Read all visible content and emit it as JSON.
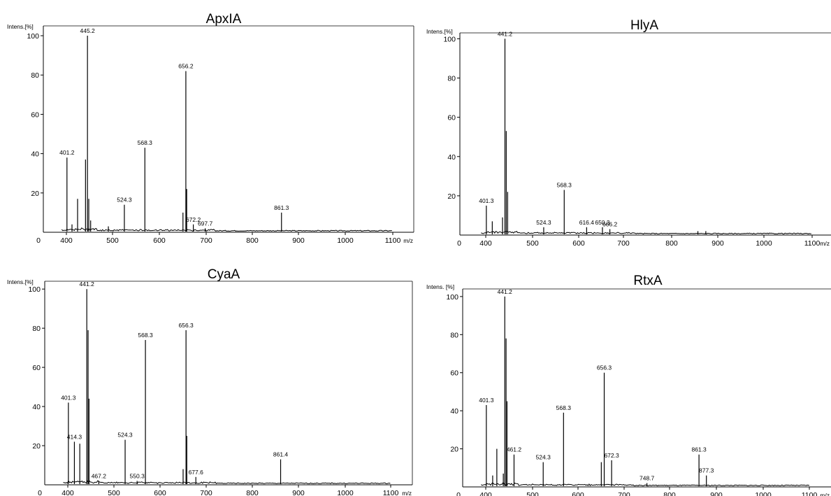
{
  "chart_data": [
    {
      "type": "line",
      "title": "ApxIA",
      "ylabel": "Intens.[%]",
      "xlabel": "m/z",
      "xlim": [
        0,
        1150
      ],
      "ylim": [
        0,
        105
      ],
      "xticks": [
        "0",
        "400",
        "500",
        "600",
        "700",
        "800",
        "900",
        "1000",
        "1100"
      ],
      "yticks": [
        "100",
        "80",
        "60",
        "40",
        "20"
      ],
      "peaks": [
        {
          "x": 401.2,
          "y": 38,
          "label": "401.2"
        },
        {
          "x": 412,
          "y": 4
        },
        {
          "x": 424,
          "y": 17
        },
        {
          "x": 441,
          "y": 37
        },
        {
          "x": 445.2,
          "y": 100,
          "label": "445.2"
        },
        {
          "x": 448,
          "y": 17
        },
        {
          "x": 452,
          "y": 6
        },
        {
          "x": 490,
          "y": 3
        },
        {
          "x": 524.3,
          "y": 14,
          "label": "524.3"
        },
        {
          "x": 568.3,
          "y": 43,
          "label": "568.3"
        },
        {
          "x": 650,
          "y": 10
        },
        {
          "x": 656.2,
          "y": 82,
          "label": "656.2"
        },
        {
          "x": 658,
          "y": 22
        },
        {
          "x": 672.2,
          "y": 4,
          "label": "672.2"
        },
        {
          "x": 697.7,
          "y": 2,
          "label": "697.7"
        },
        {
          "x": 861.3,
          "y": 10,
          "label": "861.3"
        }
      ]
    },
    {
      "type": "line",
      "title": "HlyA",
      "ylabel": "Intens.[%]",
      "xlabel": "m/z",
      "xlim": [
        0,
        1150
      ],
      "ylim": [
        0,
        103
      ],
      "xticks": [
        "0",
        "400",
        "500",
        "600",
        "700",
        "800",
        "900",
        "1000",
        "1100"
      ],
      "yticks": [
        "100",
        "80",
        "60",
        "40",
        "20"
      ],
      "peaks": [
        {
          "x": 401.3,
          "y": 15,
          "label": "401.3"
        },
        {
          "x": 414,
          "y": 7
        },
        {
          "x": 436,
          "y": 9
        },
        {
          "x": 441.2,
          "y": 100,
          "label": "441.2"
        },
        {
          "x": 444,
          "y": 53
        },
        {
          "x": 447,
          "y": 22
        },
        {
          "x": 524.3,
          "y": 4,
          "label": "524.3"
        },
        {
          "x": 568.3,
          "y": 23,
          "label": "568.3"
        },
        {
          "x": 616.4,
          "y": 4,
          "label": "616.4"
        },
        {
          "x": 650.3,
          "y": 4,
          "label": "650.3"
        },
        {
          "x": 666.2,
          "y": 3,
          "label": "666.2"
        },
        {
          "x": 855,
          "y": 2
        },
        {
          "x": 872,
          "y": 2
        }
      ]
    },
    {
      "type": "line",
      "title": "CyaA",
      "ylabel": "Intens.[%]",
      "xlabel": "m/z",
      "xlim": [
        0,
        1150
      ],
      "ylim": [
        0,
        104
      ],
      "xticks": [
        "0",
        "400",
        "500",
        "600",
        "700",
        "800",
        "900",
        "1000",
        "1100"
      ],
      "yticks": [
        "100",
        "80",
        "60",
        "40",
        "20"
      ],
      "peaks": [
        {
          "x": 401.3,
          "y": 42,
          "label": "401.3"
        },
        {
          "x": 414.3,
          "y": 22,
          "label": "414.3"
        },
        {
          "x": 426,
          "y": 21
        },
        {
          "x": 441.2,
          "y": 100,
          "label": "441.2"
        },
        {
          "x": 444,
          "y": 79
        },
        {
          "x": 446,
          "y": 44
        },
        {
          "x": 467.2,
          "y": 2,
          "label": "467.2"
        },
        {
          "x": 524.3,
          "y": 23,
          "label": "524.3"
        },
        {
          "x": 550.3,
          "y": 2,
          "label": "550.3"
        },
        {
          "x": 568.3,
          "y": 74,
          "label": "568.3"
        },
        {
          "x": 650,
          "y": 8
        },
        {
          "x": 656.3,
          "y": 79,
          "label": "656.3"
        },
        {
          "x": 658,
          "y": 25
        },
        {
          "x": 677.6,
          "y": 4,
          "label": "677.6"
        },
        {
          "x": 861.4,
          "y": 13,
          "label": "861.4"
        }
      ]
    },
    {
      "type": "line",
      "title": "RtxA",
      "ylabel": "Intens. [%]",
      "xlabel": "m/z",
      "xlim": [
        0,
        1150
      ],
      "ylim": [
        0,
        104
      ],
      "xticks": [
        "0",
        "400",
        "500",
        "600",
        "700",
        "800",
        "900",
        "1000",
        "1100"
      ],
      "yticks": [
        "100",
        "80",
        "60",
        "40",
        "20"
      ],
      "peaks": [
        {
          "x": 401.3,
          "y": 43,
          "label": "401.3"
        },
        {
          "x": 415,
          "y": 6
        },
        {
          "x": 424,
          "y": 20
        },
        {
          "x": 438,
          "y": 7
        },
        {
          "x": 441.2,
          "y": 100,
          "label": "441.2"
        },
        {
          "x": 444,
          "y": 78
        },
        {
          "x": 446,
          "y": 45
        },
        {
          "x": 461.2,
          "y": 17,
          "label": "461.2"
        },
        {
          "x": 524.3,
          "y": 13,
          "label": "524.3"
        },
        {
          "x": 568.3,
          "y": 39,
          "label": "568.3"
        },
        {
          "x": 650,
          "y": 13
        },
        {
          "x": 656.3,
          "y": 60,
          "label": "656.3"
        },
        {
          "x": 672.3,
          "y": 14,
          "label": "672.3"
        },
        {
          "x": 748.7,
          "y": 2,
          "label": "748.7"
        },
        {
          "x": 861.3,
          "y": 17,
          "label": "861.3"
        },
        {
          "x": 877.3,
          "y": 6,
          "label": "877.3"
        }
      ]
    }
  ]
}
